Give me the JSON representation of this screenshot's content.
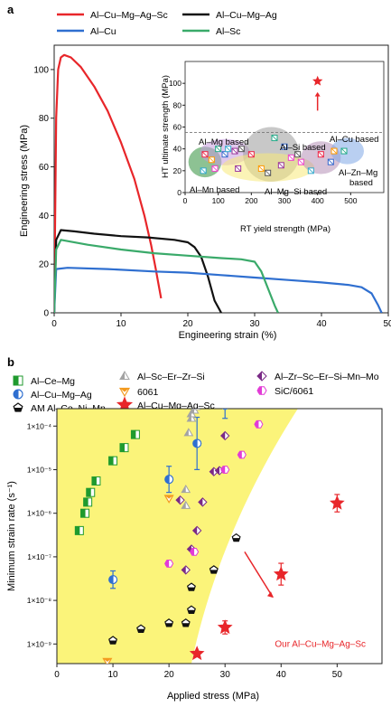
{
  "colors": {
    "red": "#e8262a",
    "black": "#111111",
    "blue": "#2f6fd0",
    "green": "#3aaa6a",
    "yellow": "#fbf47a",
    "ce_mg": "#1f9a2e",
    "grey_tri": "#a3a3a3",
    "orange": "#f39a1e",
    "purple": "#7a2a86",
    "magenta": "#e23bd6"
  },
  "panel_a": {
    "label": "a",
    "chart_data": {
      "type": "line",
      "xlabel": "Engineering strain (%)",
      "ylabel": "Engineering stress (MPa)",
      "xlim": [
        0,
        50
      ],
      "ylim": [
        0,
        110
      ],
      "xticks": [
        "0",
        "10",
        "20",
        "30",
        "40",
        "50"
      ],
      "yticks": [
        "0",
        "20",
        "40",
        "60",
        "80",
        "100"
      ],
      "legend": {
        "placement": "top",
        "entries": [
          "Al–Cu–Mg–Ag–Sc",
          "Al–Cu–Mg–Ag",
          "Al–Cu",
          "Al–Sc"
        ]
      },
      "series": [
        {
          "name": "Al–Cu–Mg–Ag–Sc",
          "color": "red",
          "x": [
            0,
            0.3,
            0.6,
            1,
            1.5,
            2.5,
            4,
            6,
            8,
            10,
            12,
            13.5,
            14.5,
            15.2,
            15.6,
            16
          ],
          "y": [
            0,
            80,
            100,
            105,
            106,
            105,
            101,
            93,
            83,
            70,
            55,
            40,
            28,
            18,
            12,
            6
          ]
        },
        {
          "name": "Al–Cu–Mg–Ag",
          "color": "black",
          "x": [
            0,
            0.3,
            1,
            3,
            6,
            10,
            14,
            18,
            20,
            21,
            22,
            23,
            24,
            25
          ],
          "y": [
            0,
            30,
            34,
            33.5,
            32.5,
            31.5,
            31,
            30,
            29,
            27,
            23,
            15,
            5,
            0
          ]
        },
        {
          "name": "Al–Cu",
          "color": "blue",
          "x": [
            0,
            0.3,
            2,
            8,
            15,
            20,
            25,
            30,
            35,
            40,
            44,
            46,
            47.5,
            48.5,
            49
          ],
          "y": [
            0,
            18,
            18.5,
            18,
            17,
            16.5,
            15.5,
            14.5,
            13.5,
            12.5,
            11.5,
            10.5,
            8,
            3,
            0
          ]
        },
        {
          "name": "Al–Sc",
          "color": "green",
          "x": [
            0,
            0.3,
            1,
            5,
            10,
            15,
            20,
            25,
            28,
            30,
            31,
            32,
            33,
            33.5
          ],
          "y": [
            0,
            26,
            30,
            28,
            26,
            24.5,
            23.5,
            22.5,
            22,
            21,
            17,
            10,
            3,
            0
          ]
        }
      ],
      "annotations": []
    },
    "inset": {
      "chart_data": {
        "type": "scatter",
        "xlabel": "RT yield strength (MPa)",
        "ylabel": "HT ultimate strength (MPa)",
        "xlim": [
          0,
          600
        ],
        "ylim": [
          0,
          120
        ],
        "xticks": [
          "0",
          "100",
          "200",
          "300",
          "400",
          "500"
        ],
        "yticks": [
          "0",
          "20",
          "40",
          "60",
          "80",
          "100"
        ],
        "dashed_line_y": 55,
        "star": {
          "x": 400,
          "y": 102
        },
        "groups": [
          {
            "label": "Al–Mg based",
            "color": "#c79adf"
          },
          {
            "label": "Al–Si based",
            "color": "#9a9a9a"
          },
          {
            "label": "Al–Cu based",
            "color": "#7fa7e6"
          },
          {
            "label": "Al–Zn–Mg based",
            "color": "#b58fb7"
          },
          {
            "label": "Al–Mn based",
            "color": "#2f8f3a"
          },
          {
            "label": "Al–Mg–Si based",
            "color": "#f7ea7a"
          }
        ],
        "points": [
          {
            "x": 60,
            "y": 35
          },
          {
            "x": 80,
            "y": 30
          },
          {
            "x": 100,
            "y": 40
          },
          {
            "x": 120,
            "y": 35
          },
          {
            "x": 150,
            "y": 38
          },
          {
            "x": 170,
            "y": 40
          },
          {
            "x": 90,
            "y": 22
          },
          {
            "x": 55,
            "y": 20
          },
          {
            "x": 200,
            "y": 35
          },
          {
            "x": 230,
            "y": 22
          },
          {
            "x": 270,
            "y": 50
          },
          {
            "x": 300,
            "y": 42
          },
          {
            "x": 290,
            "y": 25
          },
          {
            "x": 340,
            "y": 35
          },
          {
            "x": 350,
            "y": 28
          },
          {
            "x": 380,
            "y": 20
          },
          {
            "x": 410,
            "y": 35
          },
          {
            "x": 450,
            "y": 38
          },
          {
            "x": 480,
            "y": 38
          },
          {
            "x": 440,
            "y": 28
          },
          {
            "x": 160,
            "y": 22
          },
          {
            "x": 250,
            "y": 18
          },
          {
            "x": 320,
            "y": 32
          },
          {
            "x": 130,
            "y": 40
          }
        ]
      }
    }
  },
  "panel_b": {
    "label": "b",
    "chart_data": {
      "type": "scatter",
      "xlabel": "Applied stress (MPa)",
      "ylabel": "Minimum strain rate (s⁻¹)",
      "xlim": [
        0,
        58
      ],
      "ylim_exp": [
        -9.45,
        -3.6
      ],
      "log_y": true,
      "xticks": [
        "0",
        "10",
        "20",
        "30",
        "40",
        "50"
      ],
      "yticks": [
        "1×10⁻⁹",
        "1×10⁻⁸",
        "1×10⁻⁷",
        "1×10⁻⁶",
        "1×10⁻⁵",
        "1×10⁻⁴"
      ],
      "legend": [
        {
          "label": "Al–Ce–Mg",
          "marker": "square"
        },
        {
          "label": "Al–Cu–Mg–Ag",
          "marker": "circle"
        },
        {
          "label": "AM Al–Ce–Ni–Mn",
          "marker": "pentagon"
        },
        {
          "label": "Al–Sc–Er–Zr–Si",
          "marker": "triangle"
        },
        {
          "label": "6061",
          "marker": "tri-down"
        },
        {
          "label": "Al–Cu–Mg–Ag–Sc",
          "marker": "star"
        },
        {
          "label": "Al–Zr–Sc–Er–Si–Mn–Mo",
          "marker": "diamond"
        },
        {
          "label": "SiC/6061",
          "marker": "hexagon"
        }
      ],
      "annotation": "Our Al–Cu–Mg–Ag–Sc",
      "series": [
        {
          "name": "Al–Ce–Mg",
          "marker": "square",
          "x": [
            4,
            5,
            5.5,
            6,
            7,
            10,
            12,
            14
          ],
          "y": [
            4e-07,
            1e-06,
            1.8e-06,
            3e-06,
            5.5e-06,
            1.6e-05,
            3.2e-05,
            6.4e-05
          ]
        },
        {
          "name": "Al–Cu–Mg–Ag",
          "marker": "circle",
          "x": [
            10,
            20,
            25,
            30
          ],
          "y": [
            3e-08,
            6e-06,
            4e-05,
            0.0003
          ],
          "err": [
            0.2,
            0.3,
            0.6,
            0.3
          ]
        },
        {
          "name": "AM Al–Ce–Ni–Mn",
          "marker": "pentagon",
          "x": [
            10,
            15,
            20,
            23,
            24,
            24,
            28,
            32
          ],
          "y": [
            1.2e-09,
            2.2e-09,
            3e-09,
            3e-09,
            6e-09,
            2e-08,
            5e-08,
            2.7e-07
          ]
        },
        {
          "name": "Al–Sc–Er–Zr–Si",
          "marker": "triangle",
          "x": [
            23,
            23,
            23.5,
            24,
            24,
            24.5,
            24.8,
            25,
            25.2
          ],
          "y": [
            1.5e-06,
            3.5e-06,
            7e-05,
            0.00015,
            0.00019,
            0.00023,
            0.00028,
            0.00034,
            0.00039
          ]
        },
        {
          "name": "6061",
          "marker": "tri-down",
          "x": [
            9,
            20
          ],
          "y": [
            4e-10,
            2.2e-06
          ]
        },
        {
          "name": "Al–Cu–Mg–Ag–Sc",
          "marker": "star",
          "x": [
            25,
            30,
            40,
            50
          ],
          "y": [
            6e-10,
            2.4e-09,
            4e-08,
            1.7e-06
          ],
          "err": [
            0,
            0.15,
            0.25,
            0.2
          ]
        },
        {
          "name": "Al–Zr–Sc–Er–Si–Mn–Mo",
          "marker": "diamond",
          "x": [
            22,
            23,
            24,
            25,
            26,
            28,
            29,
            30
          ],
          "y": [
            2e-06,
            5e-08,
            1.5e-07,
            4e-07,
            1.8e-06,
            9e-06,
            9.5e-06,
            6e-05
          ]
        },
        {
          "name": "SiC/6061",
          "marker": "hexagon",
          "x": [
            20,
            24.5,
            30,
            33,
            36
          ],
          "y": [
            7e-08,
            1.3e-07,
            1e-05,
            2.2e-05,
            0.00011
          ]
        }
      ]
    }
  }
}
